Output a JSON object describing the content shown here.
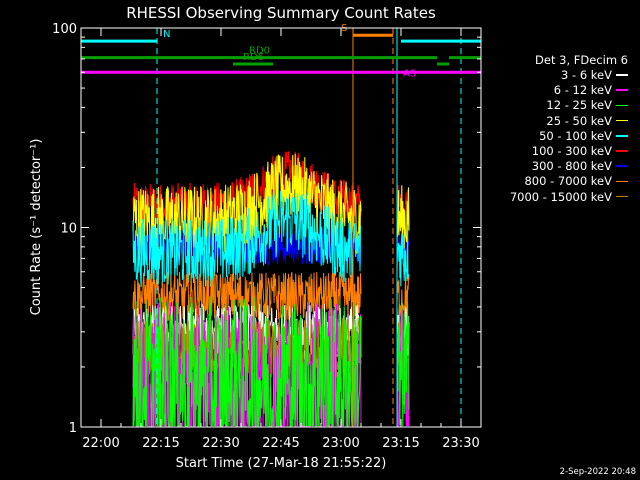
{
  "chart_data": {
    "type": "line",
    "title": "RHESSI Observing Summary Count Rates",
    "xlabel": "Start Time (27-Mar-18 21:55:22)",
    "ylabel": "Count Rate (s⁻¹ detector⁻¹)",
    "yscale": "log",
    "ylim": [
      1,
      100
    ],
    "y_ticks": [
      {
        "value": 1,
        "label": "1"
      },
      {
        "value": 10,
        "label": "10"
      },
      {
        "value": 100,
        "label": "100"
      }
    ],
    "xlim": [
      "21:55",
      "23:35"
    ],
    "x_ticks": [
      "22:00",
      "22:15",
      "22:30",
      "22:45",
      "23:00",
      "23:15",
      "23:30"
    ],
    "legend_title": "Det 3, FDecim 6",
    "legend_position": "right",
    "grid": false,
    "series": [
      {
        "name": "3 - 6 keV",
        "color": "#ffffff",
        "approx_level": 3.0
      },
      {
        "name": "6 - 12 keV",
        "color": "#ff00ff",
        "approx_level": 1.5
      },
      {
        "name": "12 - 25 keV",
        "color": "#00ff00",
        "approx_level": 1.7
      },
      {
        "name": "25 - 50 keV",
        "color": "#ffff00",
        "approx_level": 11.0
      },
      {
        "name": "50 - 100 keV",
        "color": "#00ffff",
        "approx_level": 7.5
      },
      {
        "name": "100 - 300 keV",
        "color": "#ff0000",
        "approx_level": 13.0
      },
      {
        "name": "300 - 800 keV",
        "color": "#0000ff",
        "approx_level": 8.0
      },
      {
        "name": "800 - 7000 keV",
        "color": "#ff8000",
        "approx_level": 4.5
      },
      {
        "name": "7000 - 15000 keV",
        "color": "#c08000",
        "approx_level": 2.5
      }
    ],
    "data_intervals": [
      [
        "22:08",
        "23:05"
      ],
      [
        "23:14",
        "23:17"
      ]
    ],
    "flag_bars": [
      {
        "label": "N",
        "color": "#00ffff",
        "value": 86,
        "start": "21:55",
        "end": "22:14"
      },
      {
        "label": "",
        "color": "#00ffff",
        "value": 86,
        "start": "23:15",
        "end": "23:35"
      },
      {
        "label": "S",
        "color": "#ff8000",
        "value": 92,
        "start": "23:03",
        "end": "23:13"
      },
      {
        "label": "RD0",
        "color": "#00a000",
        "value": 71,
        "start": "21:55",
        "end": "23:24"
      },
      {
        "label": "",
        "color": "#00a000",
        "value": 71,
        "start": "23:27",
        "end": "23:35"
      },
      {
        "label": "RD6",
        "color": "#00a000",
        "value": 66,
        "start": "22:33",
        "end": "22:43"
      },
      {
        "label": "",
        "color": "#00a000",
        "value": 66,
        "start": "23:24",
        "end": "23:27"
      },
      {
        "label": "AS",
        "color": "#ff00ff",
        "value": 60,
        "start": "21:55",
        "end": "23:35"
      }
    ],
    "vertical_markers": [
      {
        "time": "21:55",
        "color": "#00ffff",
        "style": "solid"
      },
      {
        "time": "22:14",
        "color": "#00ffff",
        "style": "dashed"
      },
      {
        "time": "23:03",
        "color": "#ff8000",
        "style": "solid"
      },
      {
        "time": "23:13",
        "color": "#ff8000",
        "style": "dashed"
      },
      {
        "time": "23:14",
        "color": "#00ffff",
        "style": "solid"
      },
      {
        "time": "23:30",
        "color": "#00ffff",
        "style": "dashed"
      }
    ]
  },
  "footer_date": "2-Sep-2022 20:48"
}
